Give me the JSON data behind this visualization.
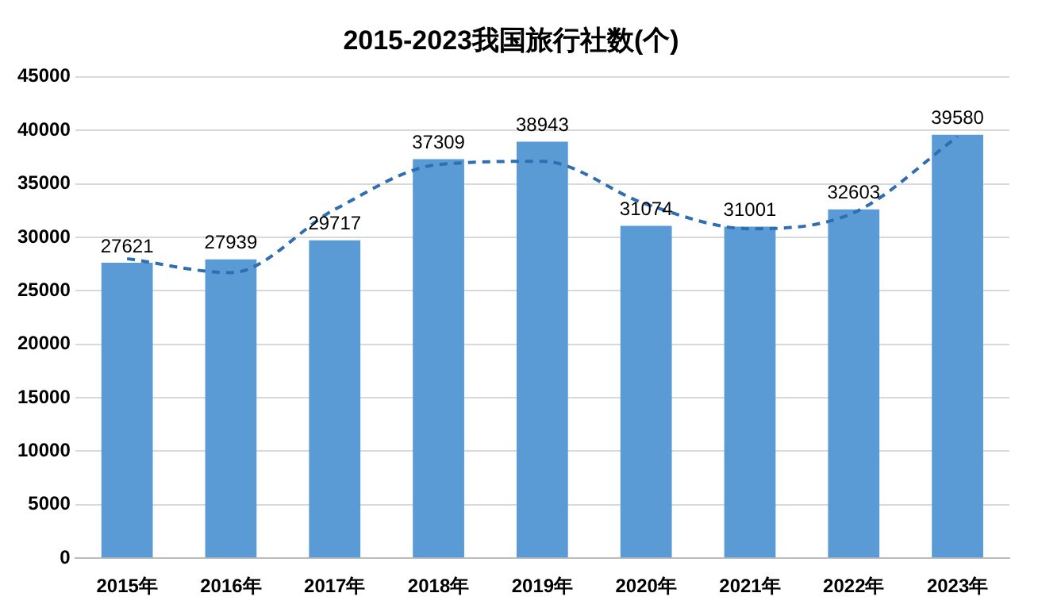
{
  "chart_data": {
    "type": "bar",
    "title": "2015-2023我国旅行社数(个)",
    "categories": [
      "2015年",
      "2016年",
      "2017年",
      "2018年",
      "2019年",
      "2020年",
      "2021年",
      "2022年",
      "2023年"
    ],
    "series": [
      {
        "color": "#5b9bd5",
        "values": [
          27621,
          27939,
          29717,
          37309,
          38943,
          31074,
          31001,
          32603,
          39580
        ],
        "value_labels": [
          "27621",
          "27939",
          "29717",
          "37309",
          "38943",
          "31074",
          "31001",
          "32603",
          "39580"
        ]
      },
      {
        "type": "line",
        "color": "#2f6eb0",
        "line_style": "dashed",
        "marker": "none",
        "values": [
          28000,
          26700,
          32600,
          36800,
          37100,
          33100,
          30800,
          32300,
          39400
        ]
      }
    ],
    "ylim": [
      0,
      45000
    ],
    "yticks": [
      0,
      5000,
      10000,
      15000,
      20000,
      25000,
      30000,
      35000,
      40000,
      45000
    ],
    "grid": "y",
    "legend": false
  }
}
